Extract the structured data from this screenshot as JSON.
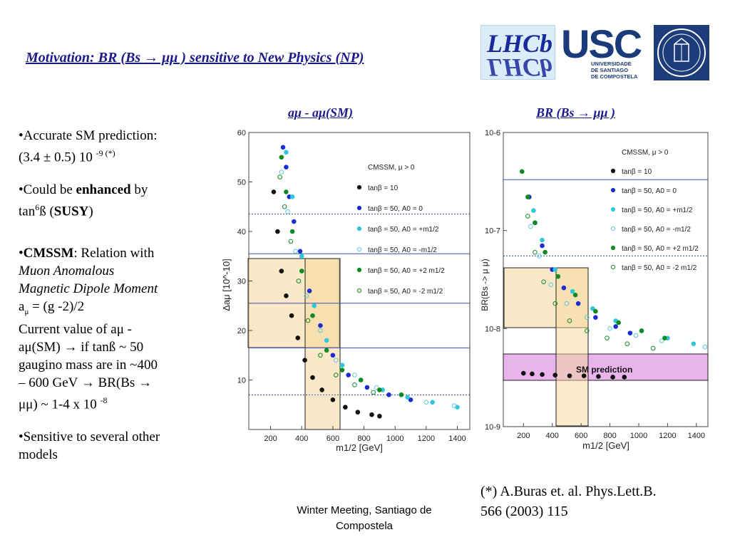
{
  "title": "Motivation: BR (Bs → μμ ) sensitive to New Physics (NP)",
  "logos": {
    "lhcb": "LHCb",
    "usc": "USC",
    "usc_line1": "UNIVERSIDADE",
    "usc_line2": "DE SANTIAGO",
    "usc_line3": "DE COMPOSTELA"
  },
  "plot_headers": {
    "left": "aμ - aμ(SM)",
    "right": "BR (Bs → μμ )"
  },
  "bullets": {
    "b1_line1": "•Accurate SM prediction:",
    "b1_line2": "(3.4 ± 0.5) 10",
    "b1_sup": "-9 (*)",
    "b2_pre": "•Could be ",
    "b2_bold": "enhanced",
    "b2_post": " by",
    "b2_line2_pre": "tan",
    "b2_sup": "6",
    "b2_line2_mid": "ß (",
    "b2_bold2": "SUSY",
    "b2_line2_post": ")",
    "b3_bullet": "•",
    "b3_bold": "CMSSM",
    "b3_rest": ": Relation with",
    "b3_it1": "Muon Anomalous",
    "b3_it2": "Magnetic Dipole Moment",
    "b3_amu": "a",
    "b3_amu_sub": "μ",
    "b3_amu_rest": " = (g -2)/2",
    "b3_l5": "Current value of aμ -",
    "b3_l6": "aμ(SM) → if tanß ~ 50",
    "b3_l7": "gaugino mass are in ~400",
    "b3_l8": "– 600 GeV → BR(Bs →",
    "b3_l9": "μμ) ~ 1-4 x 10",
    "b3_sup": "-8",
    "b4_line1": "•Sensitive to several other",
    "b4_line2": "models"
  },
  "reference": {
    "line1": "(*) A.Buras et. al. Phys.Lett.B.",
    "line2": "566 (2003) 115"
  },
  "footer": {
    "line1": "Winter Meeting, Santiago de",
    "line2": "Compostela"
  },
  "chart_data": [
    {
      "type": "scatter",
      "title": "",
      "xlabel": "m1/2 [GeV]",
      "ylabel": "Δaμ [10^-10]",
      "xlim": [
        60,
        1480
      ],
      "ylim": [
        0,
        60
      ],
      "xticks": [
        "200",
        "400",
        "600",
        "800",
        "1000",
        "1200",
        "1400"
      ],
      "yticks": [
        "10",
        "20",
        "30",
        "40",
        "50",
        "60"
      ],
      "legend_title": "CMSSM, μ > 0",
      "legend_position": "top-right",
      "legend": [
        {
          "name": "tanβ = 10",
          "color": "#111111",
          "fill": true
        },
        {
          "name": "tanβ = 50, A0 = 0",
          "color": "#1a2ed0",
          "fill": true
        },
        {
          "name": "tanβ = 50, A0 = +m1/2",
          "color": "#30c8d8",
          "fill": true
        },
        {
          "name": "tanβ = 50, A0 = -m1/2",
          "color": "#60c8d8",
          "fill": false
        },
        {
          "name": "tanβ = 50, A0 = +2 m1/2",
          "color": "#118a22",
          "fill": true
        },
        {
          "name": "tanβ = 50, A0 = -2 m1/2",
          "color": "#118a22",
          "fill": false
        }
      ],
      "horizontal_lines": [
        {
          "y": 43.5,
          "style": "dotted"
        },
        {
          "y": 35.5,
          "style": "solid"
        },
        {
          "y": 25.5,
          "style": "solid"
        },
        {
          "y": 16.5,
          "style": "solid"
        },
        {
          "y": 7.0,
          "style": "dotted"
        }
      ],
      "series": [
        {
          "color": "#111111",
          "fill": true,
          "x": [
            220,
            245,
            270,
            300,
            335,
            375,
            420,
            470,
            530,
            600,
            680,
            760,
            850,
            900
          ],
          "y": [
            48,
            40,
            32,
            27,
            23,
            18.5,
            14,
            10.5,
            8,
            6,
            4.5,
            3.5,
            3,
            2.7
          ]
        },
        {
          "color": "#1a2ed0",
          "fill": true,
          "x": [
            280,
            300,
            320,
            350,
            390,
            450,
            520,
            600,
            700,
            820,
            960,
            1100
          ],
          "y": [
            57,
            53,
            47,
            42,
            36,
            28,
            21,
            15,
            11,
            8.5,
            7,
            6
          ]
        },
        {
          "color": "#30c8d8",
          "fill": true,
          "x": [
            300,
            340,
            400,
            480,
            560,
            660,
            780,
            920,
            1080,
            1240,
            1400
          ],
          "y": [
            56,
            47,
            35,
            25,
            18,
            13,
            10,
            8,
            6.5,
            5.5,
            4.5
          ]
        },
        {
          "color": "#60c8d8",
          "fill": false,
          "x": [
            270,
            310,
            360,
            430,
            520,
            620,
            740,
            880,
            1040,
            1200,
            1380
          ],
          "y": [
            52,
            44,
            36,
            27,
            20,
            14,
            11,
            8.5,
            7,
            5.5,
            4.8
          ]
        },
        {
          "color": "#118a22",
          "fill": true,
          "x": [
            270,
            300,
            340,
            400,
            470,
            560,
            660,
            780,
            900,
            1040
          ],
          "y": [
            55,
            48,
            40,
            32,
            23,
            16,
            12,
            10,
            8,
            7
          ]
        },
        {
          "color": "#118a22",
          "fill": false,
          "x": [
            260,
            290,
            330,
            380,
            440,
            520,
            620,
            740,
            860
          ],
          "y": [
            51,
            45,
            38,
            30,
            22,
            15,
            11,
            9,
            7.5
          ]
        }
      ]
    },
    {
      "type": "scatter",
      "title": "",
      "xlabel": "m1/2 [GeV]",
      "ylabel": "BR(Bs -> μ μ)",
      "xlim": [
        60,
        1480
      ],
      "ylim": [
        1e-09,
        1e-06
      ],
      "log_y": true,
      "xticks": [
        "200",
        "400",
        "600",
        "800",
        "1000",
        "1200",
        "1400"
      ],
      "yticks": [
        "10^-9",
        "10^-8",
        "10^-7",
        "10^-6"
      ],
      "legend_title": "CMSSM, μ > 0",
      "legend_position": "top-right",
      "legend": [
        {
          "name": "tanβ = 10",
          "color": "#111111",
          "fill": true
        },
        {
          "name": "tanβ = 50, A0 = 0",
          "color": "#1a2ed0",
          "fill": true
        },
        {
          "name": "tanβ = 50, A0 = +m1/2",
          "color": "#30c8d8",
          "fill": true
        },
        {
          "name": "tanβ = 50, A0 = -m1/2",
          "color": "#60c8d8",
          "fill": false
        },
        {
          "name": "tanβ = 50, A0 = +2 m1/2",
          "color": "#118a22",
          "fill": true
        },
        {
          "name": "tanβ = 50, A0 = -2 m1/2",
          "color": "#118a22",
          "fill": false
        }
      ],
      "annotation": "SM prediction",
      "horizontal_lines": [
        {
          "y": 3.3e-07,
          "style": "solid"
        },
        {
          "y": 5.5e-08,
          "style": "dotted"
        }
      ],
      "series": [
        {
          "color": "#111111",
          "fill": true,
          "x": [
            200,
            260,
            330,
            420,
            520,
            620,
            720,
            820,
            900
          ],
          "y": [
            3.5e-09,
            3.45e-09,
            3.4e-09,
            3.35e-09,
            3.3e-09,
            3.3e-09,
            3.25e-09,
            3.2e-09,
            3.2e-09
          ]
        },
        {
          "color": "#1a2ed0",
          "fill": true,
          "x": [
            240,
            280,
            330,
            400,
            480,
            580,
            700,
            840,
            940
          ],
          "y": [
            2.2e-07,
            1.2e-07,
            7e-08,
            4e-08,
            2.6e-08,
            1.8e-08,
            1.3e-08,
            1.05e-08,
            9e-09
          ]
        },
        {
          "color": "#30c8d8",
          "fill": true,
          "x": [
            270,
            330,
            420,
            540,
            680,
            840,
            1020,
            1200,
            1380
          ],
          "y": [
            1.6e-07,
            8e-08,
            4e-08,
            2.4e-08,
            1.6e-08,
            1.2e-08,
            9.5e-09,
            8e-09,
            7e-09
          ]
        },
        {
          "color": "#60c8d8",
          "fill": false,
          "x": [
            250,
            310,
            390,
            500,
            640,
            800,
            980,
            1160,
            1460
          ],
          "y": [
            1.1e-07,
            5.5e-08,
            2.8e-08,
            1.8e-08,
            1.3e-08,
            1e-08,
            8.5e-09,
            7.5e-09,
            6.5e-09
          ]
        },
        {
          "color": "#118a22",
          "fill": true,
          "x": [
            190,
            230,
            280,
            350,
            440,
            560,
            700,
            860,
            1020,
            1180
          ],
          "y": [
            4e-07,
            2.2e-07,
            1.2e-07,
            6e-08,
            3.4e-08,
            2.2e-08,
            1.5e-08,
            1.15e-08,
            9.5e-09,
            8e-09
          ]
        },
        {
          "color": "#118a22",
          "fill": false,
          "x": [
            230,
            280,
            340,
            420,
            520,
            640,
            780,
            920,
            1100
          ],
          "y": [
            1.4e-07,
            6e-08,
            3e-08,
            1.8e-08,
            1.2e-08,
            9.5e-09,
            8e-09,
            7e-09,
            6.3e-09
          ]
        }
      ]
    }
  ]
}
